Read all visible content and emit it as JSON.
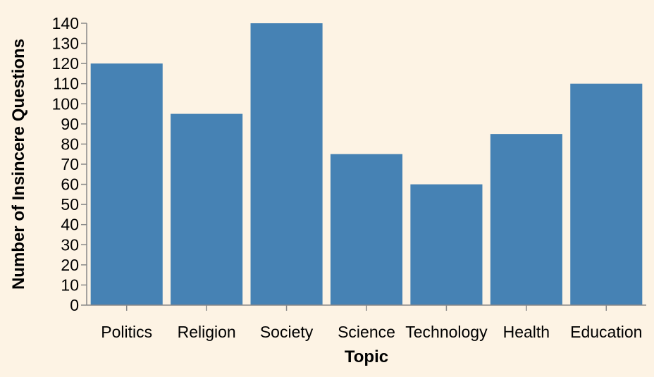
{
  "chart_data": {
    "type": "bar",
    "categories": [
      "Politics",
      "Religion",
      "Society",
      "Science",
      "Technology",
      "Health",
      "Education"
    ],
    "values": [
      120,
      95,
      140,
      75,
      60,
      85,
      110
    ],
    "xlabel": "Topic",
    "ylabel": "Number of Insincere Questions",
    "ylim": [
      0,
      140
    ],
    "yticks": [
      0,
      10,
      20,
      30,
      40,
      50,
      60,
      70,
      80,
      90,
      100,
      110,
      120,
      130,
      140
    ],
    "grid": false,
    "bar_color": "#4682b4",
    "background": "#fdf3e4"
  }
}
